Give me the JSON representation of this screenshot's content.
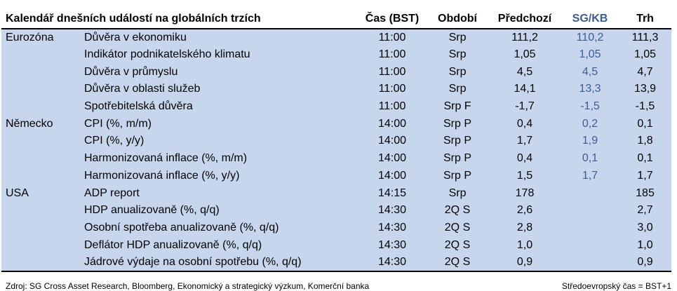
{
  "header": {
    "title": "Kalendář dnešních událostí na globálních trzích",
    "time": "Čas (BST)",
    "period": "Období",
    "previous": "Předchozí",
    "sgkb": "SG/KB",
    "market": "Trh"
  },
  "rows": [
    {
      "region": "Eurozóna",
      "indicator": "Důvěra v ekonomiku",
      "time": "11:00",
      "period": "Srp",
      "previous": "111,2",
      "sgkb": "110,2",
      "market": "111,3"
    },
    {
      "region": "",
      "indicator": "Indikátor podnikatelského klimatu",
      "time": "11:00",
      "period": "Srp",
      "previous": "1,05",
      "sgkb": "1,05",
      "market": "1,05"
    },
    {
      "region": "",
      "indicator": "Důvěra v průmyslu",
      "time": "11:00",
      "period": "Srp",
      "previous": "4,5",
      "sgkb": "4,5",
      "market": "4,7"
    },
    {
      "region": "",
      "indicator": "Důvěra v oblasti služeb",
      "time": "11:00",
      "period": "Srp",
      "previous": "14,1",
      "sgkb": "13,3",
      "market": "13,9"
    },
    {
      "region": "",
      "indicator": "Spotřebitelská důvěra",
      "time": "11:00",
      "period": "Srp F",
      "previous": "-1,7",
      "sgkb": "-1,5",
      "market": "-1,5"
    },
    {
      "region": "Německo",
      "indicator": "CPI (%, m/m)",
      "time": "14:00",
      "period": "Srp P",
      "previous": "0,4",
      "sgkb": "0,2",
      "market": "0,1"
    },
    {
      "region": "",
      "indicator": "CPI (%, y/y)",
      "time": "14:00",
      "period": "Srp P",
      "previous": "1,7",
      "sgkb": "1,9",
      "market": "1,8"
    },
    {
      "region": "",
      "indicator": "Harmonizovaná inflace (%, m/m)",
      "time": "14:00",
      "period": "Srp P",
      "previous": "0,4",
      "sgkb": "0,1",
      "market": "0,1"
    },
    {
      "region": "",
      "indicator": "Harmonizovaná inflace (%, y/y)",
      "time": "14:00",
      "period": "Srp P",
      "previous": "1,5",
      "sgkb": "1,7",
      "market": "1,7"
    },
    {
      "region": "USA",
      "indicator": "ADP report",
      "time": "14:15",
      "period": "Srp",
      "previous": "178",
      "sgkb": "",
      "market": "185"
    },
    {
      "region": "",
      "indicator": "HDP anualizovaně (%, q/q)",
      "time": "14:30",
      "period": "2Q S",
      "previous": "2,6",
      "sgkb": "",
      "market": "2,7"
    },
    {
      "region": "",
      "indicator": "Osobní spotřeba anualizovaně (%, q/q)",
      "time": "14:30",
      "period": "2Q S",
      "previous": "2,8",
      "sgkb": "",
      "market": "3,0"
    },
    {
      "region": "",
      "indicator": "Deflátor HDP anualizovaně (%, q/q)",
      "time": "14:30",
      "period": "2Q S",
      "previous": "1,0",
      "sgkb": "",
      "market": "1,0"
    },
    {
      "region": "",
      "indicator": "Jádrové výdaje na osobní spotřebu (%, q/q)",
      "time": "14:30",
      "period": "2Q S",
      "previous": "0,9",
      "sgkb": "",
      "market": "0,9"
    }
  ],
  "footer": {
    "source": "Zdroj: SG Cross Asset Research, Bloomberg, Ekonomický a strategický výzkum, Komerční banka",
    "timezone_note": "Středoevropský čas = BST+1"
  },
  "colors": {
    "row_background": "#c7d6ec",
    "sgkb_text": "#3a5d97"
  }
}
